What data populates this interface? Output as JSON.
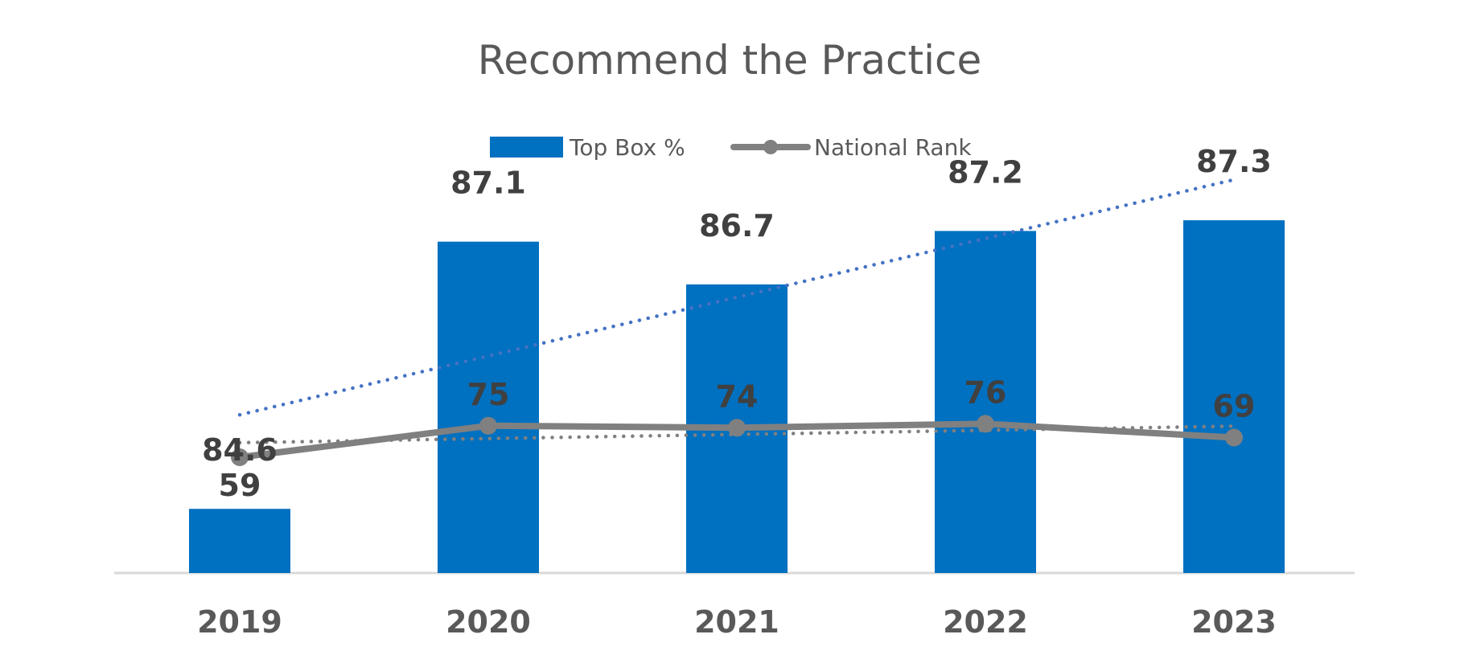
{
  "chart_data": {
    "type": "bar",
    "title": "Recommend the Practice",
    "categories": [
      "2019",
      "2020",
      "2021",
      "2022",
      "2023"
    ],
    "series": [
      {
        "name": "Top Box %",
        "type": "bar",
        "axis": "primary",
        "values": [
          84.6,
          87.1,
          86.7,
          87.2,
          87.3
        ]
      },
      {
        "name": "National Rank",
        "type": "line",
        "axis": "secondary",
        "values": [
          59,
          75,
          74,
          76,
          69
        ]
      }
    ],
    "trendlines": [
      {
        "series": "Top Box %",
        "style": "dotted",
        "color": "#4472C4"
      },
      {
        "series": "National Rank",
        "style": "dotted",
        "color": "#808080"
      }
    ],
    "legend": "top-center",
    "grid": false,
    "colors": {
      "bar": "#0070C0",
      "line": "#808080",
      "bar_trend": "#4472C4",
      "line_trend": "#808080",
      "axis": "#D9D9D9"
    }
  }
}
